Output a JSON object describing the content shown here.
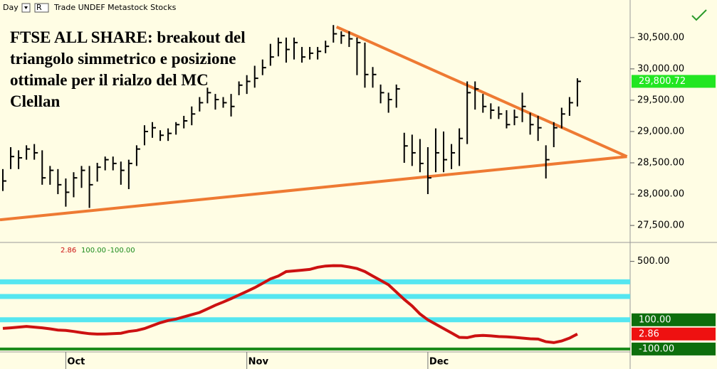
{
  "toolbar": {
    "period": "Day",
    "mode": "R",
    "info": "Trade UNDEF Metastock Stocks"
  },
  "title_lines": [
    "FTSE ALL SHARE: breakout del",
    "triangolo simmetrico e posizione",
    "ottimale per il rialzo del MC",
    "Clellan"
  ],
  "chart_data": [
    {
      "type": "hlc-bar",
      "color": "#000000",
      "categories": [
        null,
        null,
        null,
        null,
        null,
        null,
        null,
        null,
        "Oct",
        null,
        null,
        null,
        null,
        null,
        null,
        null,
        null,
        null,
        null,
        null,
        null,
        null,
        null,
        null,
        null,
        null,
        null,
        null,
        null,
        null,
        null,
        "Nov",
        null,
        null,
        null,
        null,
        null,
        null,
        null,
        null,
        null,
        null,
        null,
        null,
        null,
        null,
        null,
        null,
        null,
        null,
        null,
        null,
        null,
        null,
        "Dec",
        null,
        null,
        null,
        null,
        null,
        null,
        null,
        null,
        null,
        null,
        null,
        null,
        null,
        null,
        null,
        null,
        null,
        null,
        null
      ],
      "high": [
        28400,
        28750,
        28700,
        28780,
        28800,
        28700,
        28450,
        28400,
        28250,
        28350,
        28450,
        28450,
        28500,
        28600,
        28600,
        28520,
        28550,
        28780,
        29100,
        29150,
        29020,
        29050,
        29150,
        29250,
        29400,
        29550,
        29700,
        29600,
        29550,
        29600,
        29800,
        29900,
        30050,
        30150,
        30400,
        30500,
        30500,
        30500,
        30350,
        30350,
        30350,
        30450,
        30700,
        30600,
        30600,
        30500,
        30420,
        30030,
        29750,
        29620,
        29750,
        28980,
        28950,
        28880,
        28750,
        29050,
        29000,
        28800,
        29050,
        29800,
        29800,
        29600,
        29450,
        29400,
        29340,
        29350,
        29620,
        29300,
        29250,
        28780,
        29150,
        29380,
        29550,
        29850
      ],
      "low": [
        28050,
        28400,
        28400,
        28550,
        28550,
        28150,
        28150,
        28000,
        27800,
        27950,
        28100,
        27780,
        28200,
        28380,
        28380,
        28150,
        28080,
        28450,
        28780,
        28900,
        28850,
        28850,
        28950,
        29050,
        29100,
        29320,
        29450,
        29350,
        29380,
        29240,
        29580,
        29600,
        29700,
        29900,
        30050,
        30200,
        30100,
        30150,
        30100,
        30150,
        30150,
        30250,
        30420,
        30400,
        30350,
        29900,
        29700,
        29700,
        29450,
        29300,
        29380,
        28500,
        28450,
        28350,
        28000,
        28350,
        28350,
        28400,
        28450,
        28800,
        29350,
        29300,
        29200,
        29200,
        29050,
        29100,
        29150,
        28950,
        28850,
        28250,
        28750,
        29050,
        29250,
        29400
      ],
      "close": [
        28210,
        28600,
        28580,
        28720,
        28660,
        28260,
        28380,
        28150,
        28030,
        28260,
        28380,
        28150,
        28430,
        28550,
        28490,
        28380,
        28490,
        28720,
        29000,
        29060,
        28940,
        28970,
        29110,
        29170,
        29280,
        29460,
        29620,
        29510,
        29460,
        29400,
        29740,
        29800,
        29850,
        30020,
        30190,
        30420,
        30310,
        30420,
        30190,
        30250,
        30280,
        30360,
        30560,
        30530,
        30480,
        30420,
        29910,
        29910,
        29620,
        29510,
        29680,
        28770,
        28660,
        28490,
        28260,
        28660,
        28550,
        28660,
        28890,
        29620,
        29680,
        29400,
        29340,
        29280,
        29110,
        29230,
        29400,
        29110,
        29060,
        28550,
        29060,
        29280,
        29460,
        29800.72
      ],
      "last_label": "29,800.72",
      "last_color": "#22e622",
      "trendlines": [
        {
          "color": "#ee7a33",
          "x": [
            -0.36,
            79.3
          ],
          "values": [
            27590,
            28600
          ]
        },
        {
          "color": "#ee7a33",
          "x": [
            42.4,
            79.3
          ],
          "values": [
            30670,
            28600
          ]
        }
      ],
      "xlim": [
        -0.36,
        79.7
      ],
      "ylim": [
        27240,
        31100
      ],
      "yticks": [
        {
          "value": 27500,
          "label": "27,500.00"
        },
        {
          "value": 28000,
          "label": "28,000.00"
        },
        {
          "value": 28500,
          "label": "28,500.00"
        },
        {
          "value": 29000,
          "label": "29,000.00"
        },
        {
          "value": 29500,
          "label": "29,500.00"
        },
        {
          "value": 30000,
          "label": "30,000.00"
        },
        {
          "value": 30500,
          "label": "30,500.00"
        }
      ]
    },
    {
      "type": "line",
      "color": "#cc1111",
      "values": [
        41,
        45,
        50,
        55,
        50,
        45,
        38,
        30,
        27,
        20,
        12,
        5,
        2,
        3,
        5,
        8,
        20,
        27,
        40,
        60,
        80,
        95,
        105,
        120,
        135,
        150,
        175,
        200,
        222,
        245,
        270,
        295,
        320,
        350,
        380,
        400,
        430,
        435,
        440,
        445,
        460,
        468,
        471,
        470,
        462,
        451,
        430,
        400,
        370,
        340,
        290,
        240,
        195,
        140,
        100,
        70,
        40,
        10,
        -20,
        -22,
        -10,
        -7,
        -10,
        -15,
        -17,
        -20,
        -25,
        -30,
        -32,
        -50,
        -56,
        -45,
        -25,
        2.86
      ],
      "last_color": "#ee1111",
      "levels": [
        {
          "value": 100,
          "label": "100.00",
          "color": "#55e6f0",
          "box": "#0d6e0d"
        },
        {
          "value": -100,
          "label": "-100.00",
          "color": "#1a8a1a",
          "box": "#0d6e0d"
        }
      ],
      "bands": [
        360,
        260
      ],
      "band_color": "#55e6f0",
      "xlim": [
        -0.36,
        79.7
      ],
      "ylim": [
        -120,
        620
      ],
      "yticks": [
        {
          "value": 500,
          "label": "500.00"
        }
      ]
    }
  ]
}
